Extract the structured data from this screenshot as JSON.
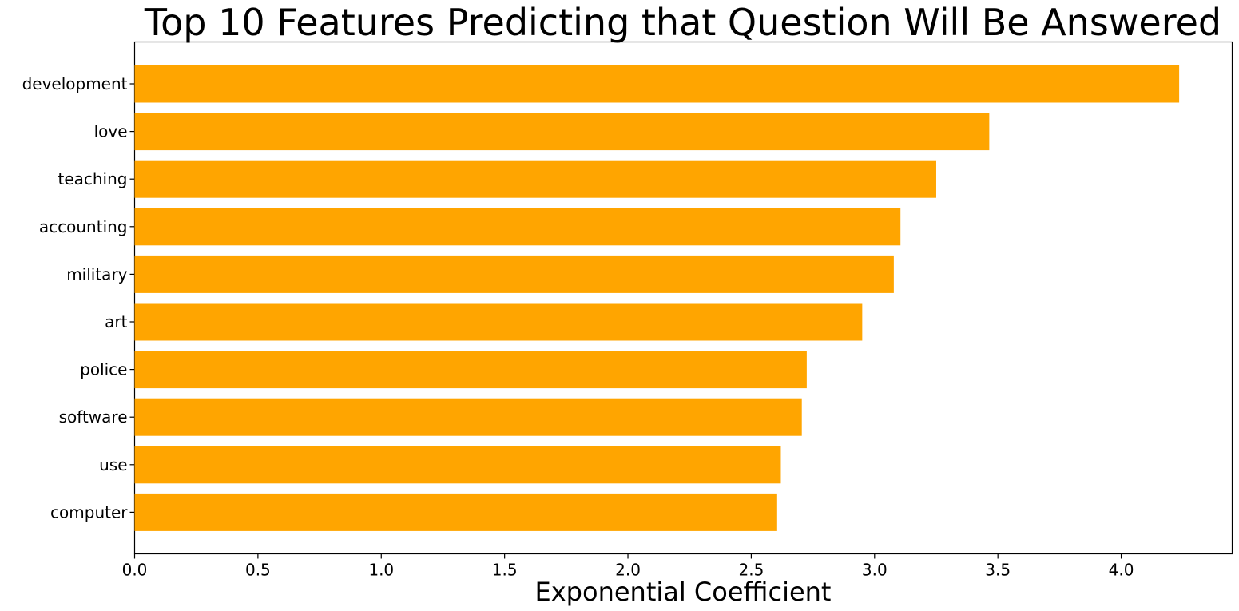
{
  "chart_data": {
    "type": "bar",
    "orientation": "horizontal",
    "title": "Top 10 Features Predicting that Question Will Be Answered",
    "xlabel": "Exponential Coefficient",
    "ylabel": "",
    "categories": [
      "development",
      "love",
      "teaching",
      "accounting",
      "military",
      "art",
      "police",
      "software",
      "use",
      "computer"
    ],
    "values": [
      4.235,
      3.465,
      3.25,
      3.105,
      3.078,
      2.95,
      2.725,
      2.705,
      2.62,
      2.605
    ],
    "xlim": [
      0,
      4.45
    ],
    "xticks": [
      "0.0",
      "0.5",
      "1.0",
      "1.5",
      "2.0",
      "2.5",
      "3.0",
      "3.5",
      "4.0"
    ],
    "bar_color": "#ffa500",
    "grid": false,
    "legend": "none"
  }
}
